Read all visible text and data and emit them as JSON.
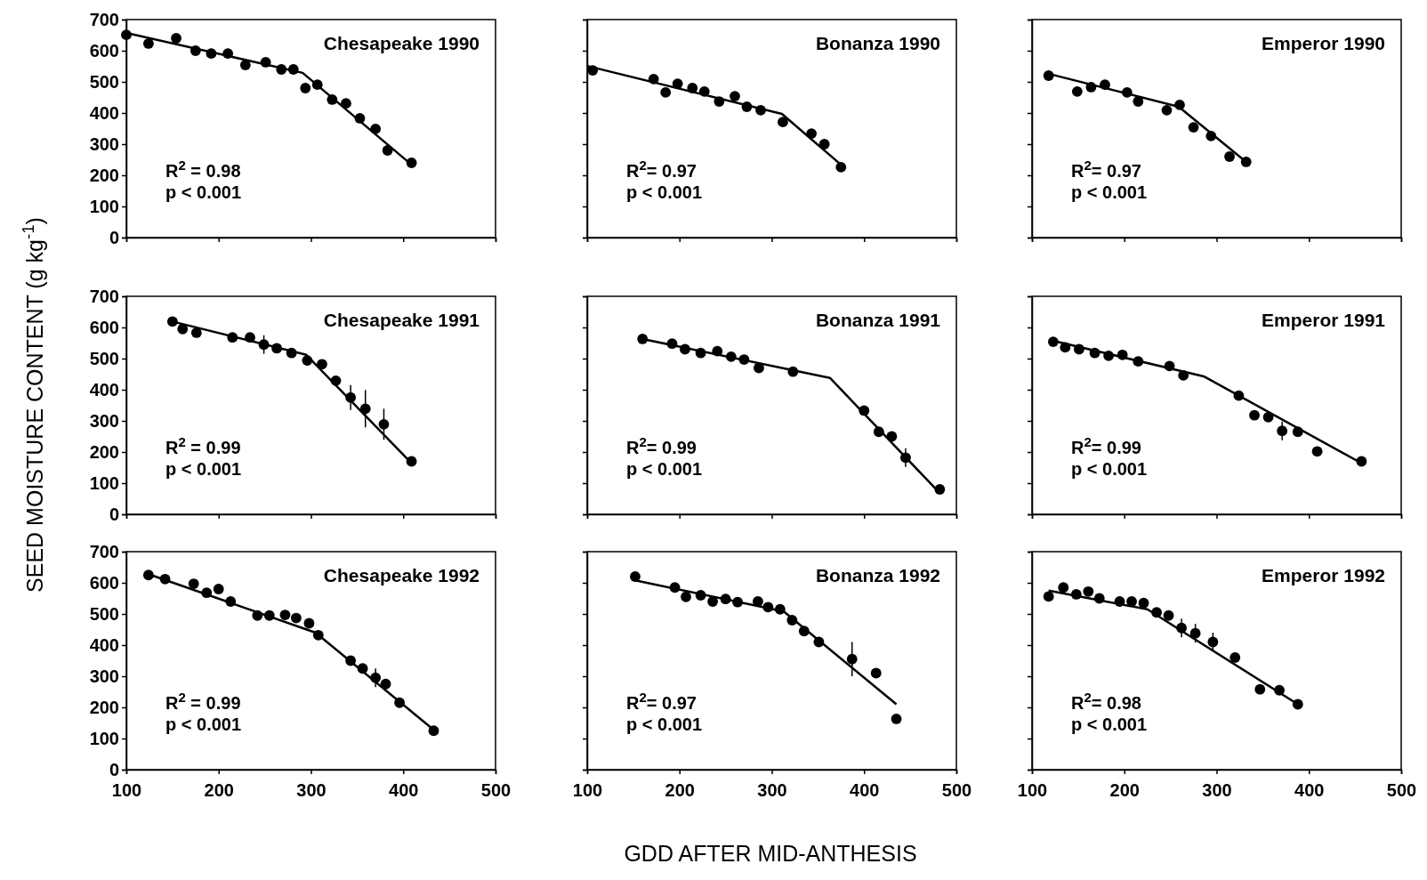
{
  "chart_data": [
    {
      "type": "scatter",
      "title": "Chesapeake 1990",
      "ylabel": "SEED MOISTURE CONTENT (g kg$^{-1}$)",
      "xlim": [
        100,
        500
      ],
      "ylim": [
        0,
        700
      ],
      "xticks": [
        100,
        200,
        300,
        400,
        500
      ],
      "yticks": [
        0,
        100,
        200,
        300,
        400,
        500,
        600,
        700
      ],
      "tick_labels": "y",
      "marker": "circle",
      "annotations": [
        "R$^{2}$ =  0.98",
        "p < 0.001"
      ],
      "x": [
        100,
        124,
        154,
        175,
        192,
        210,
        229,
        251,
        268,
        281,
        294,
        307,
        323,
        338,
        353,
        370,
        383,
        409
      ],
      "series": [
        {
          "color": "#000000",
          "values": [
            651,
            623,
            640,
            600,
            591,
            591,
            554,
            563,
            540,
            540,
            480,
            491,
            443,
            431,
            383,
            349,
            280,
            240
          ]
        },
        {
          "type": "line",
          "marker": "none",
          "color": "#000000",
          "x": [
            100,
            291,
            409
          ],
          "values": [
            657,
            529,
            234
          ]
        }
      ]
    },
    {
      "type": "scatter",
      "title": "Bonanza 1990",
      "xlim": [
        100,
        500
      ],
      "ylim": [
        0,
        700
      ],
      "xticks": [
        100,
        200,
        300,
        400,
        500
      ],
      "yticks": [
        0,
        100,
        200,
        300,
        400,
        500,
        600,
        700
      ],
      "tick_labels": false,
      "marker": "circle",
      "annotations": [
        "R$^{2}$=  0.97",
        "p < 0.001"
      ],
      "x": [
        106,
        172,
        185,
        198,
        214,
        227,
        243,
        260,
        273,
        288,
        312,
        343,
        357,
        375
      ],
      "series": [
        {
          "color": "#000000",
          "values": [
            537,
            509,
            466,
            494,
            480,
            469,
            437,
            454,
            420,
            409,
            371,
            334,
            300,
            226
          ]
        },
        {
          "type": "line",
          "marker": "none",
          "color": "#000000",
          "x": [
            100,
            311,
            375
          ],
          "values": [
            551,
            397,
            234
          ]
        }
      ]
    },
    {
      "type": "scatter",
      "title": "Emperor  1990",
      "xlim": [
        100,
        500
      ],
      "ylim": [
        0,
        700
      ],
      "xticks": [
        100,
        200,
        300,
        400,
        500
      ],
      "yticks": [
        0,
        100,
        200,
        300,
        400,
        500,
        600,
        700
      ],
      "tick_labels": false,
      "marker": "circle",
      "annotations": [
        "R$^{2}$=  0.97",
        "p < 0.001"
      ],
      "x": [
        118,
        149,
        164,
        179,
        203,
        215,
        246,
        260,
        275,
        294,
        314,
        332
      ],
      "series": [
        {
          "color": "#000000",
          "values": [
            520,
            469,
            483,
            491,
            466,
            437,
            409,
            426,
            354,
            326,
            260,
            243
          ]
        },
        {
          "type": "line",
          "marker": "none",
          "color": "#000000",
          "x": [
            114,
            259,
            332
          ],
          "values": [
            529,
            420,
            243
          ]
        }
      ]
    },
    {
      "type": "scatter",
      "title": "Chesapeake 1991",
      "xlim": [
        100,
        500
      ],
      "ylim": [
        0,
        700
      ],
      "xticks": [
        100,
        200,
        300,
        400,
        500
      ],
      "yticks": [
        0,
        100,
        200,
        300,
        400,
        500,
        600,
        700
      ],
      "tick_labels": "y",
      "marker": "circle",
      "annotations": [
        "R$^{2}$ = 0.99",
        "p < 0.001"
      ],
      "x": [
        150,
        161,
        176,
        215,
        234,
        249,
        263,
        279,
        296,
        312,
        327,
        343,
        359,
        379,
        409
      ],
      "series": [
        {
          "color": "#000000",
          "values": [
            619,
            595,
            583,
            568,
            568,
            545,
            533,
            518,
            494,
            482,
            429,
            375,
            339,
            289,
            170
          ],
          "errors": [
            null,
            null,
            null,
            null,
            null,
            30,
            null,
            null,
            null,
            null,
            null,
            40,
            60,
            50,
            null
          ]
        },
        {
          "type": "line",
          "marker": "none",
          "color": "#000000",
          "x": [
            150,
            295,
            409
          ],
          "values": [
            619,
            512,
            164
          ]
        }
      ]
    },
    {
      "type": "scatter",
      "title": "Bonanza 1991",
      "xlim": [
        100,
        500
      ],
      "ylim": [
        0,
        700
      ],
      "xticks": [
        100,
        200,
        300,
        400,
        500
      ],
      "yticks": [
        0,
        100,
        200,
        300,
        400,
        500,
        600,
        700
      ],
      "tick_labels": false,
      "marker": "circle",
      "annotations": [
        "R$^{2}$=  0.99",
        "p < 0.001"
      ],
      "x": [
        160,
        192,
        206,
        223,
        241,
        256,
        270,
        286,
        323,
        400,
        416,
        430,
        445,
        482
      ],
      "series": [
        {
          "color": "#000000",
          "values": [
            563,
            548,
            530,
            518,
            524,
            506,
            497,
            470,
            458,
            333,
            265,
            250,
            182,
            80
          ],
          "errors": [
            null,
            null,
            null,
            null,
            null,
            null,
            null,
            null,
            null,
            null,
            null,
            null,
            30,
            null
          ]
        },
        {
          "type": "line",
          "marker": "none",
          "color": "#000000",
          "x": [
            160,
            363,
            482
          ],
          "values": [
            563,
            438,
            68
          ]
        }
      ]
    },
    {
      "type": "scatter",
      "title": "Emperor 1991",
      "xlim": [
        100,
        500
      ],
      "ylim": [
        0,
        700
      ],
      "xticks": [
        100,
        200,
        300,
        400,
        500
      ],
      "yticks": [
        0,
        100,
        200,
        300,
        400,
        500,
        600,
        700
      ],
      "tick_labels": false,
      "marker": "circle",
      "annotations": [
        "R$^{2}$=  0.99",
        "p < 0.001"
      ],
      "x": [
        123,
        136,
        151,
        168,
        183,
        198,
        215,
        249,
        264,
        324,
        341,
        356,
        371,
        388,
        409,
        457
      ],
      "series": [
        {
          "color": "#000000",
          "values": [
            554,
            536,
            530,
            518,
            509,
            512,
            491,
            476,
            446,
            381,
            318,
            312,
            268,
            265,
            202,
            170
          ],
          "errors": [
            null,
            null,
            null,
            null,
            null,
            null,
            null,
            null,
            null,
            null,
            null,
            null,
            30,
            null,
            null,
            null
          ]
        },
        {
          "type": "line",
          "marker": "none",
          "color": "#000000",
          "x": [
            123,
            286,
            457
          ],
          "values": [
            557,
            443,
            164
          ]
        }
      ]
    },
    {
      "type": "scatter",
      "title": "Chesapeake 1992",
      "xlabel": "GDD AFTER MID-ANTHESIS",
      "xlim": [
        100,
        500
      ],
      "ylim": [
        0,
        700
      ],
      "xticks": [
        100,
        200,
        300,
        400,
        500
      ],
      "yticks": [
        0,
        100,
        200,
        300,
        400,
        500,
        600,
        700
      ],
      "marker": "circle",
      "annotations": [
        "R$^{2}$ = 0.99",
        "p < 0.001"
      ],
      "x": [
        124,
        142,
        173,
        187,
        200,
        213,
        242,
        255,
        272,
        284,
        298,
        308,
        343,
        356,
        370,
        381,
        396,
        433
      ],
      "series": [
        {
          "color": "#000000",
          "values": [
            625,
            612,
            597,
            568,
            580,
            540,
            495,
            495,
            497,
            487,
            470,
            432,
            350,
            325,
            295,
            275,
            215,
            125
          ],
          "errors": [
            null,
            null,
            null,
            null,
            null,
            null,
            null,
            null,
            null,
            null,
            null,
            null,
            null,
            null,
            30,
            null,
            null,
            null
          ]
        },
        {
          "type": "line",
          "marker": "none",
          "color": "#000000",
          "x": [
            124,
            305,
            433
          ],
          "values": [
            628,
            440,
            128
          ]
        }
      ]
    },
    {
      "type": "scatter",
      "title": "Bonanza 1992",
      "xlim": [
        100,
        500
      ],
      "ylim": [
        0,
        700
      ],
      "xticks": [
        100,
        200,
        300,
        400,
        500
      ],
      "yticks": [
        0,
        100,
        200,
        300,
        400,
        500,
        600,
        700
      ],
      "tick_labels": "x",
      "marker": "circle",
      "annotations": [
        "R$^{2}$=  0.97",
        "p < 0.001"
      ],
      "x": [
        152,
        195,
        207,
        223,
        236,
        250,
        263,
        285,
        296,
        309,
        322,
        335,
        351,
        387,
        413,
        435
      ],
      "series": [
        {
          "color": "#000000",
          "values": [
            620,
            585,
            555,
            560,
            540,
            548,
            538,
            540,
            522,
            515,
            480,
            445,
            410,
            355,
            310,
            163
          ],
          "errors": [
            null,
            null,
            null,
            null,
            null,
            null,
            null,
            null,
            null,
            null,
            null,
            null,
            null,
            55,
            null,
            null
          ]
        },
        {
          "type": "line",
          "marker": "none",
          "color": "#000000",
          "x": [
            152,
            313,
            435
          ],
          "values": [
            608,
            508,
            210
          ]
        }
      ]
    },
    {
      "type": "scatter",
      "title": "Emperor 1992",
      "xlim": [
        100,
        500
      ],
      "ylim": [
        0,
        700
      ],
      "xticks": [
        100,
        200,
        300,
        400,
        500
      ],
      "yticks": [
        0,
        100,
        200,
        300,
        400,
        500,
        600,
        700
      ],
      "tick_labels": "x",
      "marker": "circle",
      "annotations": [
        "R$^{2}$=  0.98",
        "p < 0.001"
      ],
      "x": [
        118,
        134,
        148,
        161,
        173,
        195,
        208,
        221,
        235,
        248,
        262,
        277,
        296,
        320,
        347,
        368,
        388
      ],
      "series": [
        {
          "color": "#000000",
          "values": [
            556,
            585,
            563,
            572,
            550,
            540,
            540,
            535,
            505,
            495,
            455,
            438,
            410,
            360,
            258,
            255,
            210
          ],
          "errors": [
            null,
            null,
            null,
            null,
            null,
            null,
            null,
            null,
            null,
            null,
            30,
            30,
            30,
            null,
            null,
            null,
            null
          ]
        },
        {
          "type": "line",
          "marker": "none",
          "color": "#000000",
          "x": [
            118,
            225,
            388
          ],
          "values": [
            575,
            515,
            210
          ]
        }
      ]
    }
  ]
}
